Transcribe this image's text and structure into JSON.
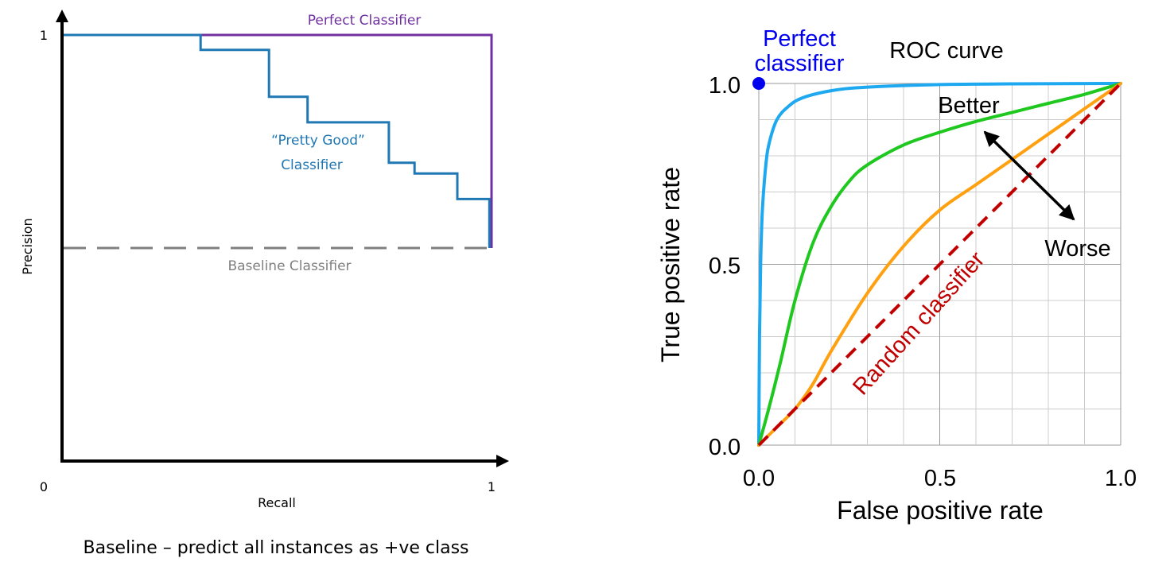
{
  "chart_data": [
    {
      "type": "line",
      "name": "precision-recall",
      "xlabel": "Recall",
      "ylabel": "Precision",
      "xlim": [
        0,
        1
      ],
      "ylim": [
        0,
        1
      ],
      "tick_labels": {
        "origin": "0",
        "x_max": "1",
        "y_max": "1"
      },
      "grid": false,
      "caption": "Baseline – predict all instances as +ve class",
      "colors": {
        "perfect": "#7030a0",
        "pretty_good": "#1f77b4",
        "baseline": "#808080",
        "axis": "#000000"
      },
      "series": [
        {
          "name": "Perfect Classifier",
          "style": "solid",
          "x": [
            0,
            1,
            1
          ],
          "y": [
            1,
            1,
            0.5
          ]
        },
        {
          "name": "“Pretty Good”",
          "label_line2": "Classifier",
          "style": "step",
          "x": [
            0,
            0.32,
            0.32,
            0.48,
            0.48,
            0.57,
            0.57,
            0.76,
            0.76,
            0.82,
            0.82,
            0.92,
            0.92,
            0.995,
            0.995
          ],
          "y": [
            1.0,
            1.0,
            0.965,
            0.965,
            0.855,
            0.855,
            0.795,
            0.795,
            0.7,
            0.7,
            0.675,
            0.675,
            0.615,
            0.615,
            0.5
          ]
        },
        {
          "name": "Baseline Classifier",
          "style": "dashed",
          "x": [
            0,
            1
          ],
          "y": [
            0.5,
            0.5
          ]
        }
      ]
    },
    {
      "type": "line",
      "name": "roc",
      "title": "ROC curve",
      "xlabel": "False positive rate",
      "ylabel": "True positive rate",
      "xlim": [
        0,
        1
      ],
      "ylim": [
        0,
        1
      ],
      "xticks": [
        "0.0",
        "0.5",
        "1.0"
      ],
      "yticks": [
        "0.0",
        "0.5",
        "1.0"
      ],
      "grid": true,
      "colors": {
        "excellent": "#1ea8f0",
        "good": "#1ec81e",
        "fair": "#ffa010",
        "random": "#c00000",
        "perfect_point": "#0000ee",
        "grid": "#cccccc"
      },
      "perfect_point": {
        "label_line1": "Perfect",
        "label_line2": "classifier",
        "x": 0,
        "y": 1
      },
      "random_label": "Random classifier",
      "better_label": "Better",
      "worse_label": "Worse",
      "series": [
        {
          "key": "excellent",
          "x": [
            0,
            0.002,
            0.005,
            0.01,
            0.02,
            0.03,
            0.05,
            0.08,
            0.12,
            0.2,
            0.3,
            0.5,
            0.7,
            1.0
          ],
          "y": [
            0,
            0.3,
            0.5,
            0.65,
            0.78,
            0.84,
            0.9,
            0.935,
            0.96,
            0.98,
            0.99,
            0.997,
            0.999,
            1.0
          ]
        },
        {
          "key": "good",
          "x": [
            0,
            0.03,
            0.06,
            0.1,
            0.15,
            0.2,
            0.25,
            0.3,
            0.4,
            0.5,
            0.6,
            0.7,
            0.8,
            0.9,
            1.0
          ],
          "y": [
            0,
            0.11,
            0.23,
            0.4,
            0.56,
            0.66,
            0.73,
            0.775,
            0.83,
            0.865,
            0.895,
            0.92,
            0.945,
            0.97,
            1.0
          ]
        },
        {
          "key": "fair",
          "x": [
            0,
            0.05,
            0.1,
            0.15,
            0.2,
            0.3,
            0.4,
            0.5,
            0.6,
            0.7,
            0.8,
            0.9,
            1.0
          ],
          "y": [
            0,
            0.05,
            0.1,
            0.17,
            0.26,
            0.42,
            0.55,
            0.65,
            0.72,
            0.79,
            0.86,
            0.93,
            1.0
          ]
        },
        {
          "key": "random",
          "style": "dashed",
          "x": [
            0,
            1
          ],
          "y": [
            0,
            1
          ]
        }
      ]
    }
  ]
}
